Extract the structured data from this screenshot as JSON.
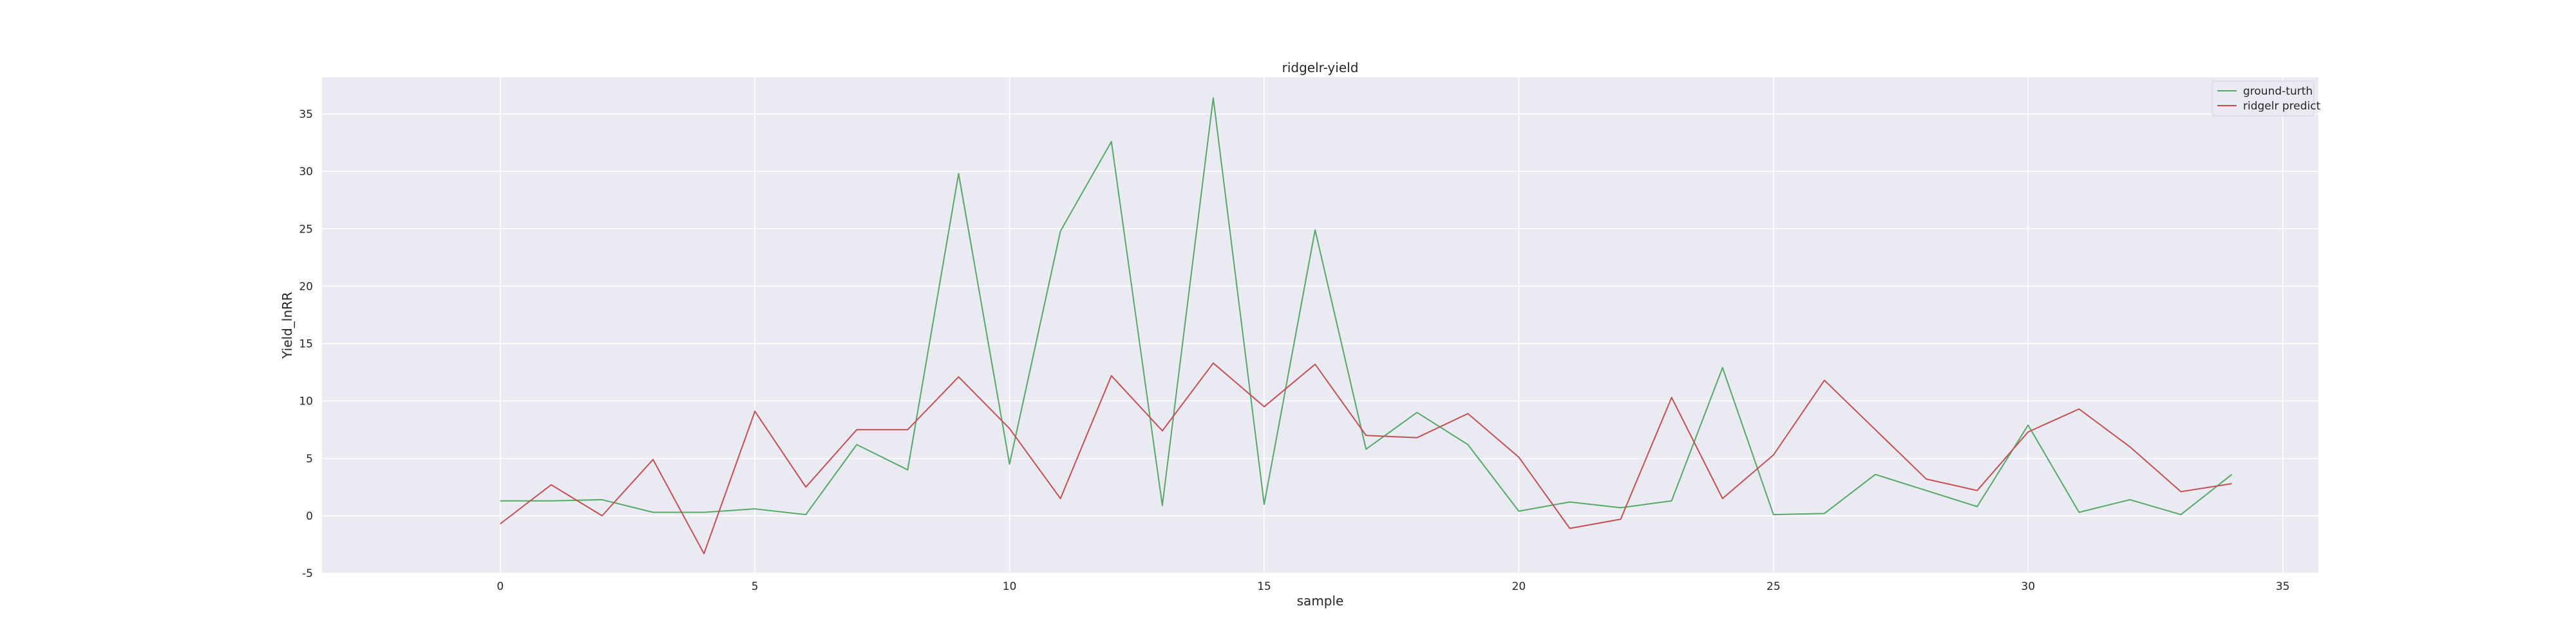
{
  "chart_data": {
    "type": "line",
    "title": "ridgelr-yield",
    "xlabel": "sample",
    "ylabel": "Yield_lnRR",
    "xlim": [
      -3.5,
      35.7
    ],
    "ylim": [
      -5,
      38.2
    ],
    "xticks": [
      0,
      5,
      10,
      15,
      20,
      25,
      30,
      35
    ],
    "yticks": [
      -5,
      0,
      5,
      10,
      15,
      20,
      25,
      30,
      35
    ],
    "grid": true,
    "legend_position": "top-right",
    "x": [
      0,
      1,
      2,
      3,
      4,
      5,
      6,
      7,
      8,
      9,
      10,
      11,
      12,
      13,
      14,
      15,
      16,
      17,
      18,
      19,
      20,
      21,
      22,
      23,
      24,
      25,
      26,
      27,
      28,
      29,
      30,
      31,
      32,
      33,
      34
    ],
    "series": [
      {
        "name": "ground-turth",
        "color": "#55a868",
        "values": [
          1.3,
          1.3,
          1.4,
          0.3,
          0.3,
          0.6,
          0.1,
          6.2,
          4.0,
          29.8,
          4.5,
          24.8,
          32.6,
          0.9,
          36.4,
          1.0,
          24.9,
          5.8,
          9.0,
          6.2,
          0.4,
          1.2,
          0.7,
          1.3,
          12.9,
          0.1,
          0.2,
          3.6,
          2.2,
          0.8,
          7.9,
          0.3,
          1.4,
          0.1,
          3.6
        ]
      },
      {
        "name": "ridgelr predict",
        "color": "#c44e52",
        "values": [
          -0.7,
          2.7,
          0.0,
          4.9,
          -3.3,
          9.1,
          2.5,
          7.5,
          7.5,
          12.1,
          7.6,
          1.5,
          12.2,
          7.4,
          13.3,
          9.5,
          13.2,
          7.0,
          6.8,
          8.9,
          5.1,
          -1.1,
          -0.3,
          10.3,
          1.5,
          5.3,
          11.8,
          7.5,
          3.2,
          2.2,
          7.3,
          9.3,
          6.0,
          2.1,
          2.8
        ]
      }
    ]
  }
}
